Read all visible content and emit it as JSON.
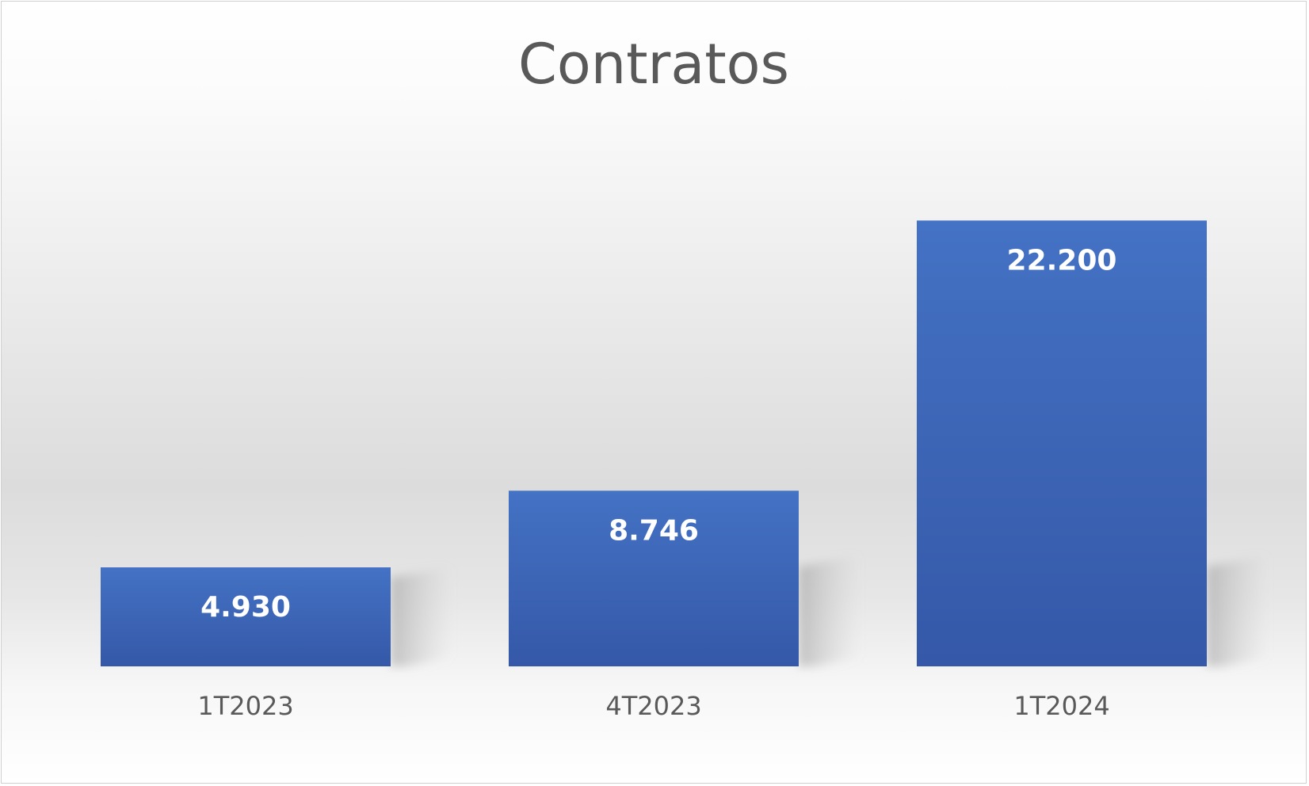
{
  "chart_data": {
    "type": "bar",
    "title": "Contratos",
    "categories": [
      "1T2023",
      "4T2023",
      "1T2024"
    ],
    "values": [
      4930,
      8746,
      22200
    ],
    "value_labels": [
      "4.930",
      "8.746",
      "22.200"
    ],
    "ylim": [
      0,
      26000
    ],
    "grid": false,
    "legend": "none",
    "bar_color": "#4472c4",
    "bar_color_dark": "#3558a8",
    "label_color": "#ffffff",
    "text_color": "#595959"
  }
}
